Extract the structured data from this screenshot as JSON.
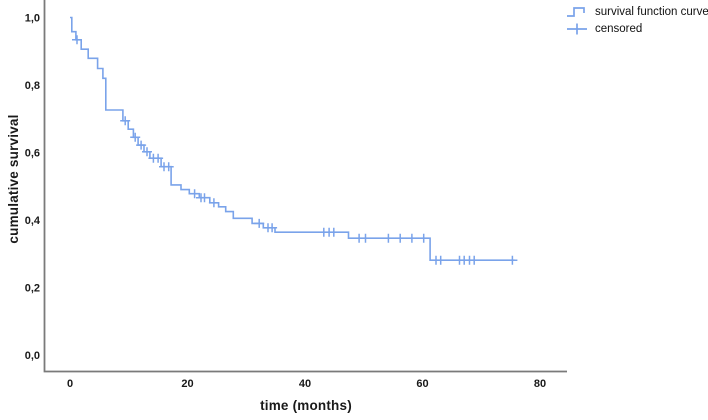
{
  "chart_data": {
    "type": "line",
    "subtype": "kaplan_meier_step_curve",
    "title": "",
    "xlabel": "time (months)",
    "ylabel": "cumulative survival",
    "xlim": [
      -4.4,
      84.6
    ],
    "ylim": [
      -0.05,
      1.05
    ],
    "grid": "off",
    "legend_position": "top-right-outside",
    "decimal_separator": ",",
    "x_ticks": [
      {
        "t": 0,
        "label": "0"
      },
      {
        "t": 20,
        "label": "20"
      },
      {
        "t": 40,
        "label": "40"
      },
      {
        "t": 60,
        "label": "60"
      },
      {
        "t": 80,
        "label": "80"
      }
    ],
    "y_ticks": [
      {
        "v": 0.0,
        "label": "0,0"
      },
      {
        "v": 0.2,
        "label": "0,2"
      },
      {
        "v": 0.4,
        "label": "0,4"
      },
      {
        "v": 0.6,
        "label": "0,6"
      },
      {
        "v": 0.8,
        "label": "0,8"
      },
      {
        "v": 1.0,
        "label": "1,0"
      }
    ],
    "legend": [
      {
        "label": "survival function curve",
        "symbol": "step-line"
      },
      {
        "label": "censored",
        "symbol": "plus-cross"
      }
    ],
    "colors": {
      "curve": "#7aa3ea",
      "axis": "#7a7a7a",
      "text": "#1a1a1a"
    },
    "survival_steps": [
      [
        0.0,
        1.0
      ],
      [
        0.3,
        0.958
      ],
      [
        1.0,
        0.934
      ],
      [
        1.9,
        0.906
      ],
      [
        3.1,
        0.879
      ],
      [
        4.7,
        0.849
      ],
      [
        5.6,
        0.82
      ],
      [
        6.1,
        0.726
      ],
      [
        9.0,
        0.694
      ],
      [
        9.9,
        0.669
      ],
      [
        10.8,
        0.645
      ],
      [
        11.6,
        0.622
      ],
      [
        12.6,
        0.602
      ],
      [
        13.6,
        0.583
      ],
      [
        15.5,
        0.558
      ],
      [
        17.2,
        0.504
      ],
      [
        18.9,
        0.49
      ],
      [
        20.3,
        0.478
      ],
      [
        22.0,
        0.466
      ],
      [
        23.8,
        0.451
      ],
      [
        25.3,
        0.439
      ],
      [
        26.5,
        0.425
      ],
      [
        27.8,
        0.405
      ],
      [
        31.0,
        0.39
      ],
      [
        32.9,
        0.377
      ],
      [
        34.9,
        0.364
      ],
      [
        47.4,
        0.346
      ],
      [
        61.3,
        0.281
      ]
    ],
    "curve_end_time": 75.7,
    "censored_points": [
      [
        1.2,
        0.934
      ],
      [
        9.4,
        0.694
      ],
      [
        11.1,
        0.645
      ],
      [
        12.1,
        0.622
      ],
      [
        13.1,
        0.602
      ],
      [
        14.2,
        0.583
      ],
      [
        15.0,
        0.583
      ],
      [
        16.0,
        0.558
      ],
      [
        16.8,
        0.558
      ],
      [
        21.2,
        0.478
      ],
      [
        22.3,
        0.466
      ],
      [
        22.9,
        0.466
      ],
      [
        24.5,
        0.451
      ],
      [
        32.2,
        0.39
      ],
      [
        33.7,
        0.377
      ],
      [
        34.4,
        0.377
      ],
      [
        43.2,
        0.364
      ],
      [
        44.1,
        0.364
      ],
      [
        44.9,
        0.364
      ],
      [
        49.2,
        0.346
      ],
      [
        50.3,
        0.346
      ],
      [
        54.2,
        0.346
      ],
      [
        56.2,
        0.346
      ],
      [
        58.2,
        0.346
      ],
      [
        60.2,
        0.346
      ],
      [
        62.3,
        0.281
      ],
      [
        63.1,
        0.281
      ],
      [
        66.3,
        0.281
      ],
      [
        67.1,
        0.281
      ],
      [
        68.0,
        0.281
      ],
      [
        68.8,
        0.281
      ],
      [
        75.3,
        0.281
      ]
    ]
  }
}
